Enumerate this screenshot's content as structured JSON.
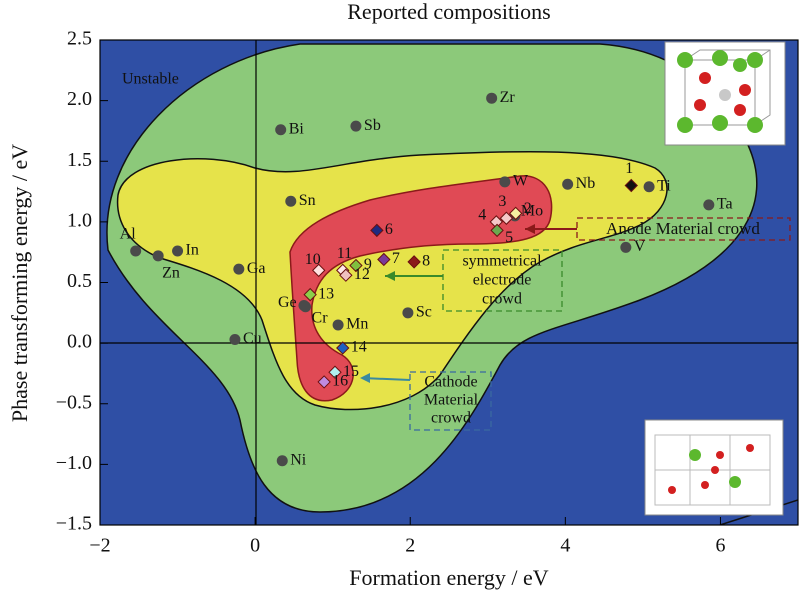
{
  "chart_data": {
    "type": "scatter",
    "title": "Reported compositions",
    "x_label": "Formation energy / eV",
    "y_label": "Phase transforming energy / eV",
    "xlim": [
      -2,
      7
    ],
    "ylim": [
      -1.5,
      2.5
    ],
    "xticks": [
      {
        "value": -2,
        "label": "−2"
      },
      0,
      2,
      4,
      6
    ],
    "yticks": [
      {
        "value": -1.5,
        "label": "−1.5"
      },
      {
        "value": -1,
        "label": "−1.0"
      },
      {
        "value": -0.5,
        "label": "−0.5"
      },
      {
        "value": 0,
        "label": "0.0"
      },
      0.5,
      {
        "value": 1,
        "label": "1.0"
      },
      1.5,
      {
        "value": 2,
        "label": "2.0"
      },
      2.5
    ],
    "annotations": {
      "unstable": "Unstable",
      "anode": "Anode Material crowd",
      "symmetrical": [
        "symmetrical",
        "electrode",
        "crowd"
      ],
      "cathode": [
        "Cathode",
        "Material",
        "crowd"
      ]
    },
    "series": [
      {
        "marker": "circle",
        "color": "#4a4a4a",
        "labels": [
          "Al",
          "Zn",
          "In",
          "Ga",
          "Cu",
          "Bi",
          "Sn",
          "Ge",
          "Cr",
          "Ni",
          "Sb",
          "Mn",
          "Sc",
          "Zr",
          "W",
          "Nb",
          "Ti",
          "Ta",
          "V",
          "Mo"
        ],
        "x": [
          -1.54,
          -1.25,
          -1.0,
          -0.21,
          -0.26,
          0.33,
          0.46,
          0.63,
          0.65,
          0.35,
          1.3,
          1.07,
          1.97,
          3.05,
          3.22,
          4.03,
          5.08,
          5.85,
          4.78,
          3.35
        ],
        "values": [
          0.76,
          0.72,
          0.76,
          0.61,
          0.03,
          1.76,
          1.17,
          0.31,
          0.3,
          -0.97,
          1.79,
          0.15,
          0.25,
          2.02,
          1.33,
          1.31,
          1.29,
          1.14,
          0.79,
          1.05
        ]
      },
      {
        "marker": "diamond",
        "colors": [
          "#111111",
          "#f4f0a0",
          "#f6c8c8",
          "#f6c8c8",
          "#6aa84f",
          "#1f2a80",
          "#7a3a99",
          "#8b1a1a",
          "#7fbf3f",
          "#ffe0e0",
          "#ffe8e8",
          "#f0c0c0",
          "#8ccf4a",
          "#1f5fbf",
          "#b0f0f0",
          "#c08be0"
        ],
        "labels": [
          "1",
          "2",
          "3",
          "4",
          "5",
          "6",
          "7",
          "8",
          "9",
          "10",
          "11",
          "12",
          "13",
          "14",
          "15",
          "16"
        ],
        "x": [
          4.85,
          3.36,
          3.24,
          3.11,
          3.12,
          1.57,
          1.66,
          2.05,
          1.3,
          0.82,
          1.13,
          1.17,
          0.71,
          1.13,
          1.03,
          0.89
        ],
        "values": [
          1.3,
          1.07,
          1.03,
          1.0,
          0.93,
          0.93,
          0.69,
          0.67,
          0.64,
          0.6,
          0.6,
          0.56,
          0.4,
          -0.04,
          -0.24,
          -0.32
        ]
      }
    ]
  }
}
